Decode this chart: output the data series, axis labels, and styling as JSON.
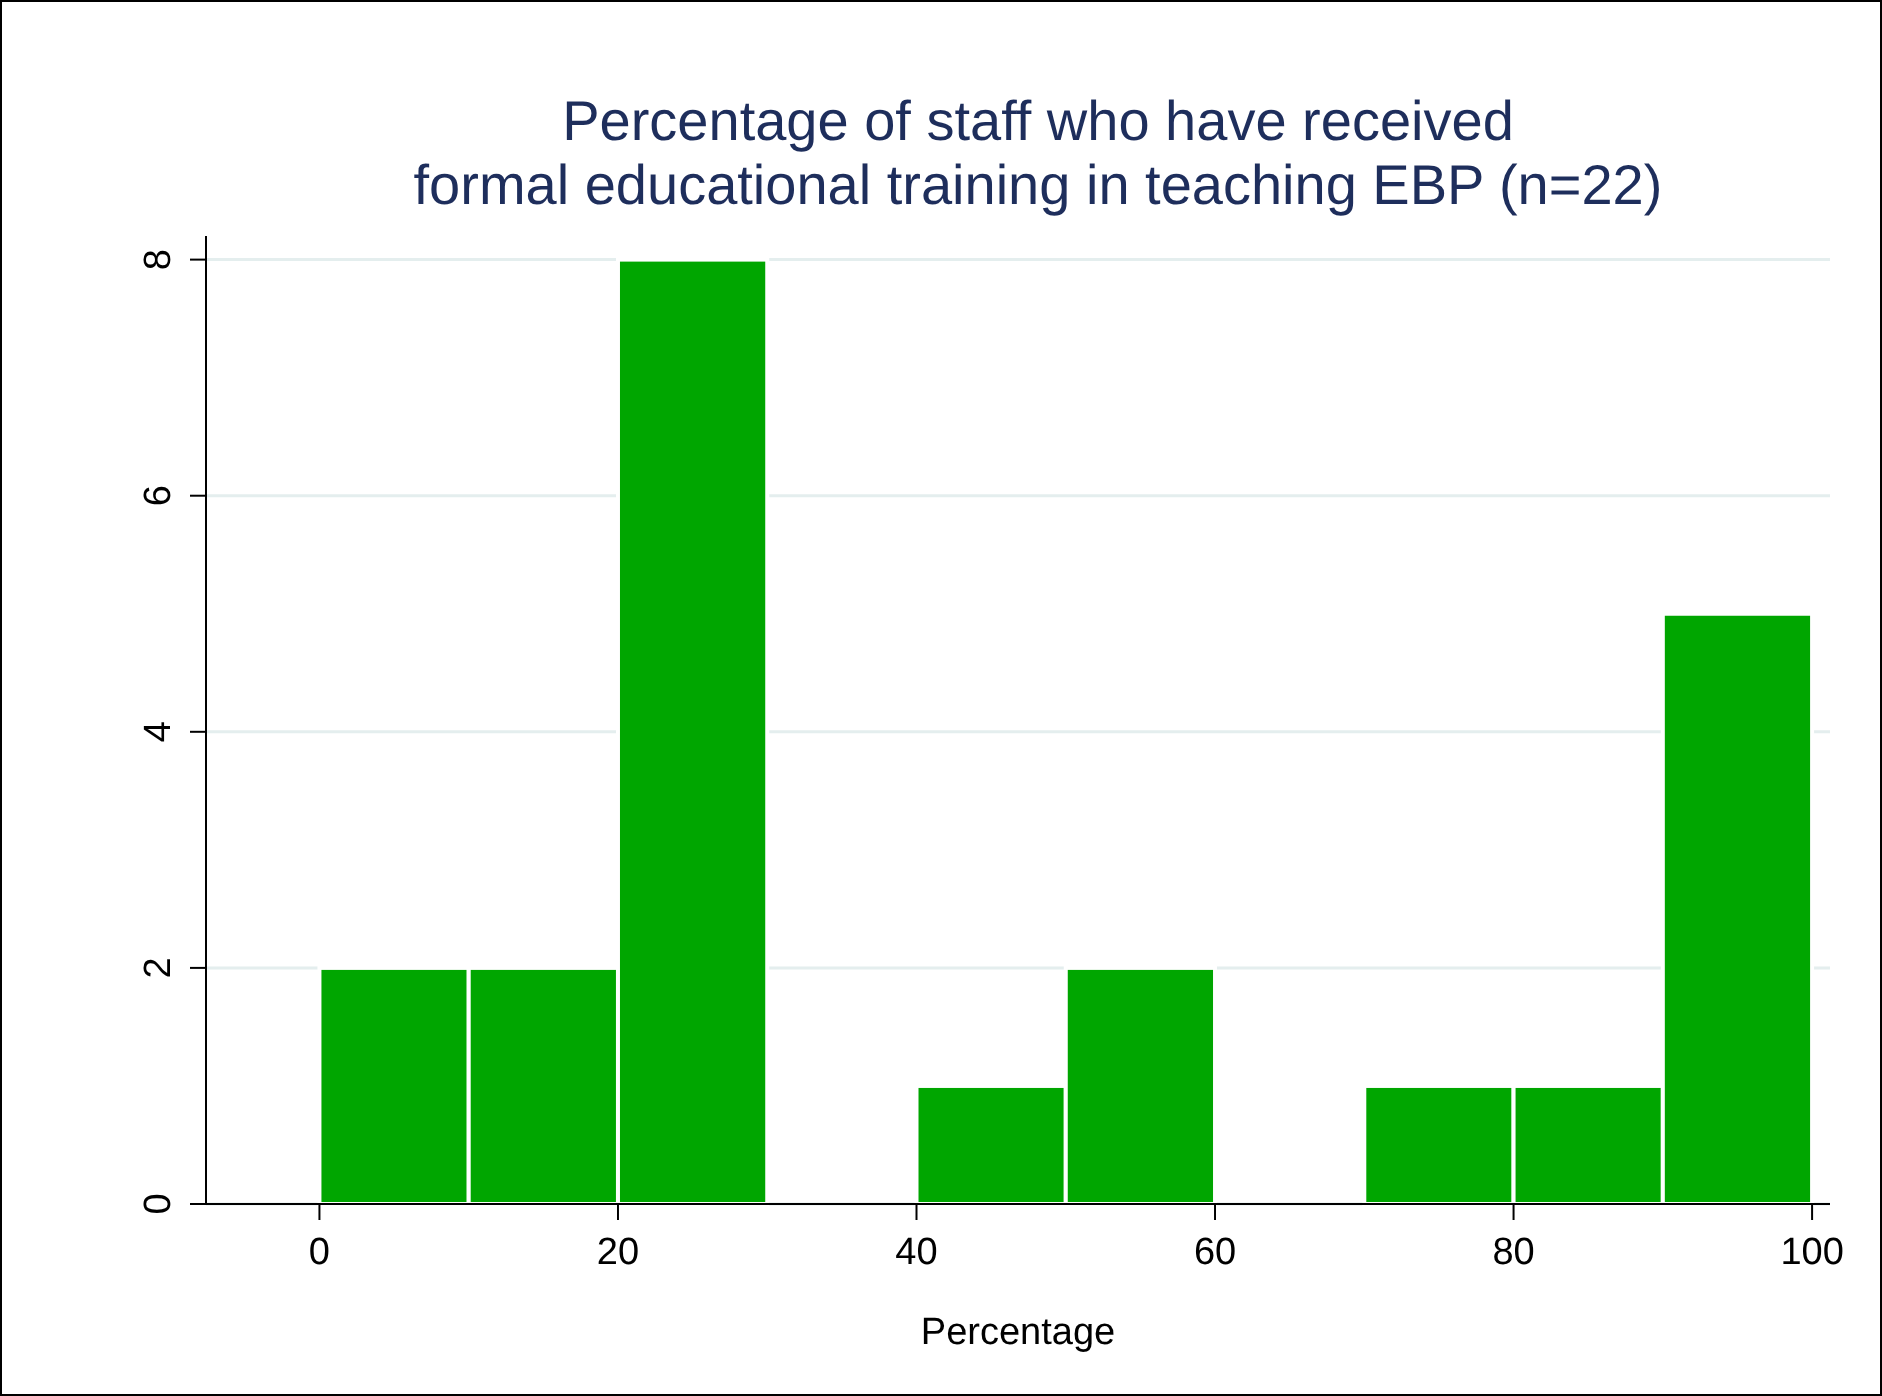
{
  "chart_data": {
    "type": "histogram",
    "title": "Percentage of staff who have received\nformal educational training in teaching EBP (n=22)",
    "xlabel": "Percentage",
    "bins": [
      0,
      10,
      20,
      30,
      40,
      50,
      60,
      70,
      80,
      90,
      100
    ],
    "values": [
      2,
      2,
      8,
      0,
      1,
      2,
      0,
      1,
      1,
      5
    ],
    "color": "#00a600",
    "xlim": [
      -7.6,
      101.2
    ],
    "ylim": [
      0,
      8.2
    ],
    "xticks": [
      0,
      20,
      40,
      60,
      80,
      100
    ],
    "yticks": [
      0,
      2,
      4,
      6,
      8
    ],
    "grid": "y"
  }
}
